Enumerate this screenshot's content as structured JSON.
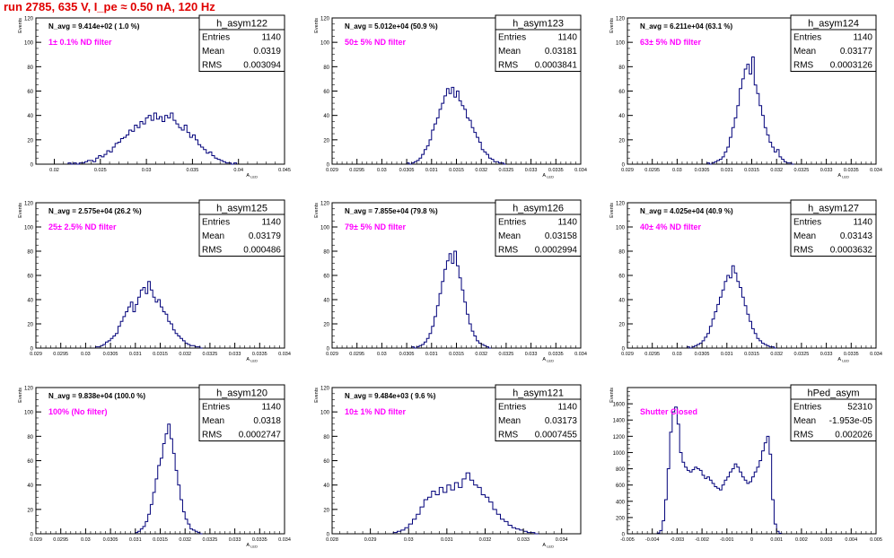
{
  "page": {
    "title": "run 2785,   635 V, I_pe ≈ 0.50 nA, 120 Hz"
  },
  "colors": {
    "histogram_line": "#00007a",
    "frame": "#000000",
    "title_text": "#e00000",
    "annotation_text": "#ff00ff",
    "background": "#ffffff"
  },
  "chart_data": [
    {
      "type": "bar",
      "histogram_name": "h_asym122",
      "n_avg_label": "N_avg = 9.414e+02 ( 1.0 %)",
      "annotation": "1± 0.1% ND filter",
      "stats": [
        {
          "label": "Entries",
          "value": "1140"
        },
        {
          "label": "Mean",
          "value": "0.0319"
        },
        {
          "label": "RMS",
          "value": "0.003094"
        }
      ],
      "ylabel": "Events",
      "xlabel": "A_LED",
      "xlim": [
        0.018,
        0.045
      ],
      "ylim": [
        0,
        120
      ],
      "xticks": [
        "0.02",
        "0.025",
        "0.03",
        "0.035",
        "0.04",
        "0.045"
      ],
      "xtick_values": [
        0.02,
        0.025,
        0.03,
        0.035,
        0.04,
        0.045
      ],
      "yticks": [
        "0",
        "20",
        "40",
        "60",
        "80",
        "100",
        "120"
      ],
      "bins": {
        "start": 0.0215,
        "width": 0.0003,
        "values": [
          1,
          0,
          1,
          0,
          1,
          1,
          2,
          3,
          3,
          2,
          5,
          7,
          6,
          8,
          11,
          10,
          14,
          17,
          18,
          21,
          22,
          24,
          28,
          27,
          32,
          30,
          35,
          33,
          38,
          40,
          36,
          42,
          37,
          39,
          35,
          40,
          38,
          42,
          36,
          33,
          30,
          28,
          32,
          26,
          22,
          24,
          20,
          16,
          14,
          12,
          9,
          10,
          7,
          5,
          4,
          3,
          2,
          1,
          1,
          0,
          1
        ]
      }
    },
    {
      "type": "bar",
      "histogram_name": "h_asym123",
      "n_avg_label": "N_avg = 5.012e+04 (50.9 %)",
      "annotation": "50± 5% ND filter",
      "stats": [
        {
          "label": "Entries",
          "value": "1140"
        },
        {
          "label": "Mean",
          "value": "0.03181"
        },
        {
          "label": "RMS",
          "value": "0.0003841"
        }
      ],
      "ylabel": "Events",
      "xlabel": "A_LED",
      "xlim": [
        0.029,
        0.034
      ],
      "ylim": [
        0,
        120
      ],
      "xticks": [
        "0.029",
        "0.0295",
        "0.03",
        "0.0305",
        "0.031",
        "0.0315",
        "0.032",
        "0.0325",
        "0.033",
        "0.0335",
        "0.034"
      ],
      "xtick_values": [
        0.029,
        0.0295,
        0.03,
        0.0305,
        0.031,
        0.0315,
        0.032,
        0.0325,
        0.033,
        0.0335,
        0.034
      ],
      "yticks": [
        "0",
        "20",
        "40",
        "60",
        "80",
        "100",
        "120"
      ],
      "bins": {
        "start": 0.0305,
        "width": 5e-05,
        "values": [
          1,
          0,
          1,
          2,
          3,
          5,
          8,
          12,
          15,
          20,
          28,
          33,
          38,
          45,
          50,
          56,
          62,
          58,
          63,
          55,
          60,
          52,
          48,
          45,
          38,
          36,
          30,
          26,
          22,
          18,
          12,
          10,
          8,
          5,
          4,
          2,
          2,
          1,
          1,
          0
        ]
      }
    },
    {
      "type": "bar",
      "histogram_name": "h_asym124",
      "n_avg_label": "N_avg = 6.211e+04 (63.1 %)",
      "annotation": "63± 5% ND filter",
      "stats": [
        {
          "label": "Entries",
          "value": "1140"
        },
        {
          "label": "Mean",
          "value": "0.03177"
        },
        {
          "label": "RMS",
          "value": "0.0003126"
        }
      ],
      "ylabel": "Events",
      "xlabel": "A_LED",
      "xlim": [
        0.029,
        0.034
      ],
      "ylim": [
        0,
        120
      ],
      "xticks": [
        "0.029",
        "0.0295",
        "0.03",
        "0.0305",
        "0.031",
        "0.0315",
        "0.032",
        "0.0325",
        "0.033",
        "0.0335",
        "0.034"
      ],
      "xtick_values": [
        0.029,
        0.0295,
        0.03,
        0.0305,
        0.031,
        0.0315,
        0.032,
        0.0325,
        0.033,
        0.0335,
        0.034
      ],
      "yticks": [
        "0",
        "20",
        "40",
        "60",
        "80",
        "100",
        "120"
      ],
      "bins": {
        "start": 0.0306,
        "width": 5e-05,
        "values": [
          1,
          0,
          1,
          2,
          3,
          4,
          6,
          10,
          14,
          22,
          30,
          38,
          48,
          62,
          70,
          78,
          82,
          74,
          88,
          65,
          58,
          48,
          40,
          30,
          24,
          18,
          14,
          10,
          12,
          6,
          4,
          2,
          1,
          1,
          0
        ]
      }
    },
    {
      "type": "bar",
      "histogram_name": "h_asym125",
      "n_avg_label": "N_avg = 2.575e+04 (26.2 %)",
      "annotation": "25± 2.5% ND filter",
      "stats": [
        {
          "label": "Entries",
          "value": "1140"
        },
        {
          "label": "Mean",
          "value": "0.03179"
        },
        {
          "label": "RMS",
          "value": "0.000486"
        }
      ],
      "ylabel": "Events",
      "xlabel": "A_LED",
      "xlim": [
        0.029,
        0.034
      ],
      "ylim": [
        0,
        120
      ],
      "xticks": [
        "0.029",
        "0.0295",
        "0.03",
        "0.0305",
        "0.031",
        "0.0315",
        "0.032",
        "0.0325",
        "0.033",
        "0.0335",
        "0.034"
      ],
      "xtick_values": [
        0.029,
        0.0295,
        0.03,
        0.0305,
        0.031,
        0.0315,
        0.032,
        0.0325,
        0.033,
        0.0335,
        0.034
      ],
      "yticks": [
        "0",
        "20",
        "40",
        "60",
        "80",
        "100",
        "120"
      ],
      "bins": {
        "start": 0.0302,
        "width": 5e-05,
        "values": [
          1,
          1,
          2,
          3,
          5,
          6,
          8,
          10,
          12,
          18,
          22,
          26,
          30,
          34,
          38,
          30,
          36,
          42,
          48,
          50,
          45,
          55,
          48,
          42,
          38,
          40,
          34,
          30,
          28,
          22,
          20,
          15,
          12,
          10,
          8,
          6,
          4,
          3,
          2,
          2,
          1,
          1,
          0
        ]
      }
    },
    {
      "type": "bar",
      "histogram_name": "h_asym126",
      "n_avg_label": "N_avg = 7.855e+04 (79.8 %)",
      "annotation": "79± 5% ND filter",
      "stats": [
        {
          "label": "Entries",
          "value": "1140"
        },
        {
          "label": "Mean",
          "value": "0.03158"
        },
        {
          "label": "RMS",
          "value": "0.0002994"
        }
      ],
      "ylabel": "Events",
      "xlabel": "A_LED",
      "xlim": [
        0.029,
        0.034
      ],
      "ylim": [
        0,
        120
      ],
      "xticks": [
        "0.029",
        "0.0295",
        "0.03",
        "0.0305",
        "0.031",
        "0.0315",
        "0.032",
        "0.0325",
        "0.033",
        "0.0335",
        "0.034"
      ],
      "xtick_values": [
        0.029,
        0.0295,
        0.03,
        0.0305,
        0.031,
        0.0315,
        0.032,
        0.0325,
        0.033,
        0.0335,
        0.034
      ],
      "yticks": [
        "0",
        "20",
        "40",
        "60",
        "80",
        "100",
        "120"
      ],
      "bins": {
        "start": 0.0306,
        "width": 5e-05,
        "values": [
          1,
          0,
          1,
          2,
          3,
          5,
          8,
          12,
          18,
          26,
          35,
          45,
          55,
          65,
          72,
          78,
          70,
          80,
          68,
          58,
          48,
          38,
          28,
          20,
          14,
          10,
          6,
          4,
          3,
          2,
          1,
          0
        ]
      }
    },
    {
      "type": "bar",
      "histogram_name": "h_asym127",
      "n_avg_label": "N_avg = 4.025e+04 (40.9 %)",
      "annotation": "40± 4% ND filter",
      "stats": [
        {
          "label": "Entries",
          "value": "1140"
        },
        {
          "label": "Mean",
          "value": "0.03143"
        },
        {
          "label": "RMS",
          "value": "0.0003632"
        }
      ],
      "ylabel": "Events",
      "xlabel": "A_LED",
      "xlim": [
        0.029,
        0.034
      ],
      "ylim": [
        0,
        120
      ],
      "xticks": [
        "0.029",
        "0.0295",
        "0.03",
        "0.0305",
        "0.031",
        "0.0315",
        "0.032",
        "0.0325",
        "0.033",
        "0.0335",
        "0.034"
      ],
      "xtick_values": [
        0.029,
        0.0295,
        0.03,
        0.0305,
        0.031,
        0.0315,
        0.032,
        0.0325,
        0.033,
        0.0335,
        0.034
      ],
      "yticks": [
        "0",
        "20",
        "40",
        "60",
        "80",
        "100",
        "120"
      ],
      "bins": {
        "start": 0.0302,
        "width": 5e-05,
        "values": [
          1,
          0,
          1,
          2,
          3,
          4,
          6,
          9,
          12,
          18,
          24,
          30,
          36,
          42,
          48,
          55,
          60,
          58,
          68,
          62,
          55,
          50,
          42,
          35,
          28,
          22,
          16,
          12,
          8,
          6,
          4,
          3,
          2,
          1,
          1,
          0
        ]
      }
    },
    {
      "type": "bar",
      "histogram_name": "h_asym120",
      "n_avg_label": "N_avg = 9.838e+04 (100.0 %)",
      "annotation": "100% (No filter)",
      "stats": [
        {
          "label": "Entries",
          "value": "1140"
        },
        {
          "label": "Mean",
          "value": "0.0318"
        },
        {
          "label": "RMS",
          "value": "0.0002747"
        }
      ],
      "ylabel": "Events",
      "xlabel": "A_LED",
      "xlim": [
        0.029,
        0.034
      ],
      "ylim": [
        0,
        120
      ],
      "xticks": [
        "0.029",
        "0.0295",
        "0.03",
        "0.0305",
        "0.031",
        "0.0315",
        "0.032",
        "0.0325",
        "0.033",
        "0.0335",
        "0.034"
      ],
      "xtick_values": [
        0.029,
        0.0295,
        0.03,
        0.0305,
        0.031,
        0.0315,
        0.032,
        0.0325,
        0.033,
        0.0335,
        0.034
      ],
      "yticks": [
        "0",
        "20",
        "40",
        "60",
        "80",
        "100",
        "120"
      ],
      "bins": {
        "start": 0.031,
        "width": 5e-05,
        "values": [
          1,
          2,
          4,
          6,
          10,
          16,
          24,
          34,
          45,
          56,
          62,
          74,
          82,
          90,
          78,
          66,
          52,
          40,
          28,
          18,
          12,
          8,
          4,
          3,
          2,
          1,
          0
        ]
      }
    },
    {
      "type": "bar",
      "histogram_name": "h_asym121",
      "n_avg_label": "N_avg = 9.484e+03 ( 9.6 %)",
      "annotation": "10± 1% ND filter",
      "stats": [
        {
          "label": "Entries",
          "value": "1140"
        },
        {
          "label": "Mean",
          "value": "0.03173"
        },
        {
          "label": "RMS",
          "value": "0.0007455"
        }
      ],
      "ylabel": "Events",
      "xlabel": "A_LED",
      "xlim": [
        0.028,
        0.0345
      ],
      "ylim": [
        0,
        120
      ],
      "xticks": [
        "0.028",
        "0.029",
        "0.03",
        "0.031",
        "0.032",
        "0.033",
        "0.034"
      ],
      "xtick_values": [
        0.028,
        0.029,
        0.03,
        0.031,
        0.032,
        0.033,
        0.034
      ],
      "yticks": [
        "0",
        "20",
        "40",
        "60",
        "80",
        "100",
        "120"
      ],
      "bins": {
        "start": 0.0296,
        "width": 0.0001,
        "values": [
          1,
          2,
          3,
          5,
          8,
          12,
          16,
          22,
          28,
          30,
          35,
          32,
          38,
          34,
          40,
          36,
          42,
          38,
          45,
          50,
          44,
          40,
          38,
          32,
          30,
          26,
          20,
          16,
          12,
          10,
          7,
          5,
          4,
          3,
          2,
          1,
          1,
          0
        ]
      }
    },
    {
      "type": "bar",
      "histogram_name": "hPed_asym",
      "n_avg_label": "",
      "annotation": "Shutter Closed",
      "stats": [
        {
          "label": "Entries",
          "value": "52310"
        },
        {
          "label": "Mean",
          "value": "-1.953e-05"
        },
        {
          "label": "RMS",
          "value": "0.002026"
        }
      ],
      "ylabel": "Events",
      "xlabel": "",
      "xlim": [
        -0.005,
        0.005
      ],
      "ylim": [
        0,
        1800
      ],
      "xticks": [
        "-0.005",
        "-0.004",
        "-0.003",
        "-0.002",
        "-0.001",
        "0",
        "0.001",
        "0.002",
        "0.003",
        "0.004",
        "0.005"
      ],
      "xtick_values": [
        -0.005,
        -0.004,
        -0.003,
        -0.002,
        -0.001,
        0,
        0.001,
        0.002,
        0.003,
        0.004,
        0.005
      ],
      "yticks": [
        "0",
        "200",
        "400",
        "600",
        "800",
        "1000",
        "1200",
        "1400",
        "1600"
      ],
      "bins": {
        "start": -0.0038,
        "width": 0.0001,
        "values": [
          10,
          40,
          160,
          420,
          800,
          1250,
          1500,
          1560,
          1350,
          1000,
          880,
          820,
          780,
          760,
          790,
          820,
          800,
          780,
          720,
          680,
          700,
          660,
          620,
          580,
          560,
          540,
          600,
          660,
          700,
          760,
          800,
          860,
          820,
          760,
          700,
          660,
          620,
          640,
          700,
          760,
          820,
          900,
          1020,
          1120,
          1200,
          980,
          420,
          120,
          30,
          5
        ]
      }
    }
  ]
}
